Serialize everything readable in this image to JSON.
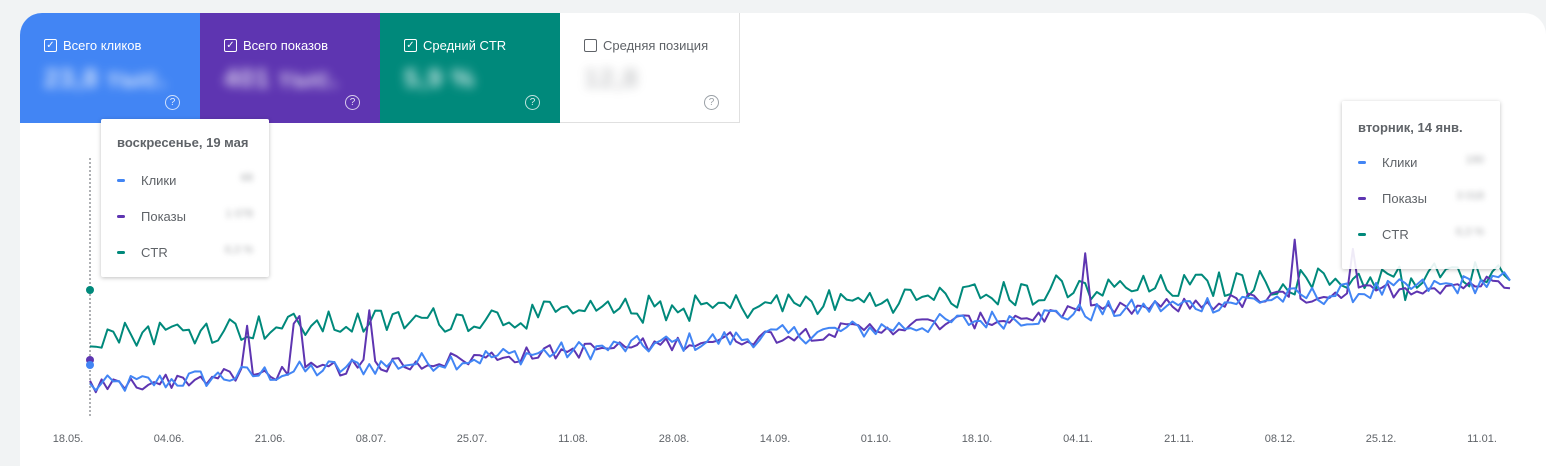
{
  "metrics": [
    {
      "key": "clicks",
      "label": "Всего кликов",
      "value": "23,8 тыс.",
      "checked": true,
      "help": "?"
    },
    {
      "key": "impressions",
      "label": "Всего показов",
      "value": "401 тыс.",
      "checked": true,
      "help": "?"
    },
    {
      "key": "ctr",
      "label": "Средний CTR",
      "value": "5,9 %",
      "checked": true,
      "help": "?"
    },
    {
      "key": "position",
      "label": "Средняя позиция",
      "value": "12,8",
      "checked": false,
      "help": "?"
    }
  ],
  "tooltip_left": {
    "date": "воскресенье, 19 мая",
    "rows": [
      {
        "label": "Клики",
        "value": "68"
      },
      {
        "label": "Показы",
        "value": "1 078"
      },
      {
        "label": "CTR",
        "value": "6,3 %"
      }
    ]
  },
  "tooltip_right": {
    "date": "вторник, 14 янв.",
    "rows": [
      {
        "label": "Клики",
        "value": "190"
      },
      {
        "label": "Показы",
        "value": "3 018"
      },
      {
        "label": "CTR",
        "value": "6,3 %"
      }
    ]
  },
  "colors": {
    "clicks": "#4285f4",
    "impressions": "#5e35b1",
    "ctr": "#00897b"
  },
  "chart_data": {
    "type": "line",
    "x_ticks": [
      "18.05.",
      "04.06.",
      "21.06.",
      "08.07.",
      "25.07.",
      "11.08.",
      "28.08.",
      "14.09.",
      "01.10.",
      "18.10.",
      "04.11.",
      "21.11.",
      "08.12.",
      "25.12.",
      "11.01."
    ],
    "series": [
      {
        "name": "Клики",
        "color": "#4285f4",
        "trend": [
          0.05,
          0.52
        ],
        "noise": 0.045
      },
      {
        "name": "Показы",
        "color": "#5e35b1",
        "trend": [
          0.05,
          0.52
        ],
        "noise": 0.035
      },
      {
        "name": "CTR",
        "color": "#00897b",
        "trend": [
          0.28,
          0.56
        ],
        "noise": 0.06
      }
    ],
    "points_per_series": 245,
    "grid": false,
    "legend": "none"
  }
}
